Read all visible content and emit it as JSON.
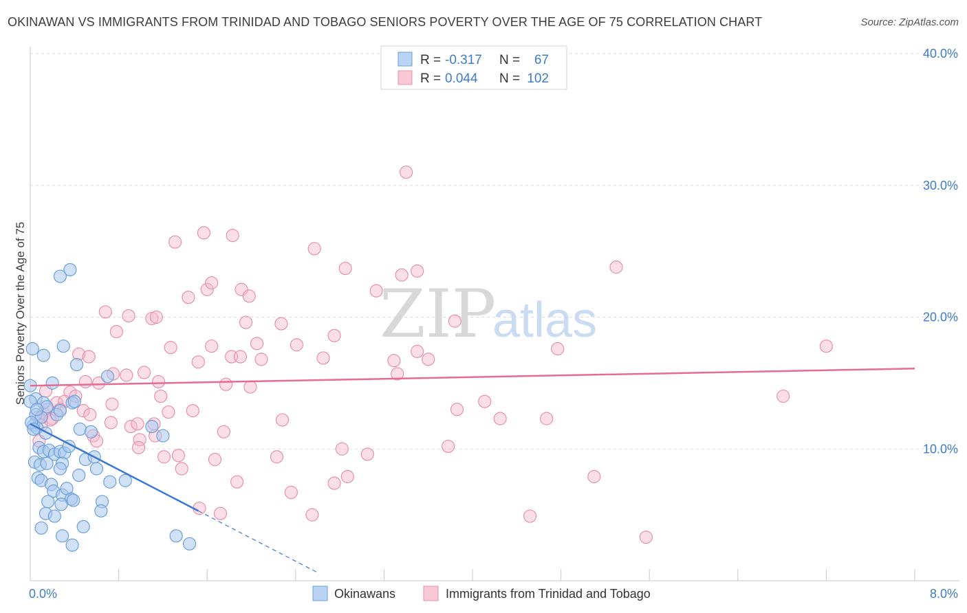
{
  "chart_data": {
    "type": "scatter",
    "title": "OKINAWAN VS IMMIGRANTS FROM TRINIDAD AND TOBAGO SENIORS POVERTY OVER THE AGE OF 75 CORRELATION CHART",
    "source": "Source: ZipAtlas.com",
    "ylabel": "Seniors Poverty Over the Age of 75",
    "xlim": [
      0,
      8
    ],
    "ylim": [
      0,
      40
    ],
    "x_tick_labels": [
      "0.0%",
      "8.0%"
    ],
    "y_ticks": [
      10,
      20,
      30,
      40
    ],
    "y_tick_labels": [
      "10.0%",
      "20.0%",
      "30.0%",
      "40.0%"
    ],
    "watermark": {
      "zip": "ZIP",
      "atlas": "atlas"
    },
    "legend_labels": {
      "r": "R =",
      "n": "N ="
    },
    "series": [
      {
        "name": "Okinawans",
        "color": "#a9c8ef",
        "stroke": "#6a9fdc",
        "line_color": "#3a78d4",
        "R": "-0.317",
        "N": "67",
        "trend": {
          "x0": 0.0,
          "y0": 11.9,
          "x1": 1.52,
          "y1": 5.3,
          "x_dash_end": 2.6
        },
        "points": [
          [
            0.02,
            17.6
          ],
          [
            0.12,
            17.1
          ],
          [
            0.3,
            17.8
          ],
          [
            0.27,
            23.1
          ],
          [
            0.36,
            23.6
          ],
          [
            0.42,
            16.4
          ],
          [
            0.2,
            15.0
          ],
          [
            0.7,
            15.5
          ],
          [
            0.0,
            14.8
          ],
          [
            0.05,
            13.8
          ],
          [
            0.12,
            13.5
          ],
          [
            0.15,
            13.2
          ],
          [
            0.38,
            13.5
          ],
          [
            0.4,
            13.6
          ],
          [
            0.24,
            12.6
          ],
          [
            0.27,
            12.9
          ],
          [
            0.05,
            12.6
          ],
          [
            0.1,
            12.4
          ],
          [
            0.03,
            11.8
          ],
          [
            0.06,
            11.6
          ],
          [
            0.14,
            11.2
          ],
          [
            0.45,
            11.5
          ],
          [
            0.55,
            11.3
          ],
          [
            0.08,
            10.1
          ],
          [
            0.12,
            9.8
          ],
          [
            0.17,
            9.9
          ],
          [
            0.22,
            9.6
          ],
          [
            0.27,
            9.8
          ],
          [
            0.31,
            9.7
          ],
          [
            0.35,
            10.2
          ],
          [
            0.04,
            9.0
          ],
          [
            0.09,
            8.8
          ],
          [
            0.15,
            8.9
          ],
          [
            0.29,
            8.9
          ],
          [
            0.5,
            9.2
          ],
          [
            0.58,
            9.4
          ],
          [
            0.07,
            7.8
          ],
          [
            0.1,
            7.6
          ],
          [
            0.19,
            7.3
          ],
          [
            0.27,
            8.5
          ],
          [
            0.44,
            8.0
          ],
          [
            0.6,
            8.5
          ],
          [
            0.21,
            6.8
          ],
          [
            0.29,
            6.5
          ],
          [
            0.33,
            7.0
          ],
          [
            0.37,
            6.2
          ],
          [
            0.39,
            6.1
          ],
          [
            0.16,
            6.0
          ],
          [
            0.28,
            5.8
          ],
          [
            0.65,
            6.0
          ],
          [
            0.14,
            5.1
          ],
          [
            0.22,
            4.9
          ],
          [
            0.1,
            4.0
          ],
          [
            0.29,
            3.4
          ],
          [
            0.48,
            4.1
          ],
          [
            0.38,
            2.7
          ],
          [
            1.32,
            3.4
          ],
          [
            1.44,
            2.8
          ],
          [
            0.72,
            7.5
          ],
          [
            0.64,
            5.3
          ],
          [
            0.86,
            7.6
          ],
          [
            1.2,
            11.0
          ],
          [
            1.1,
            11.7
          ],
          [
            0.0,
            13.6
          ],
          [
            0.01,
            12.0
          ],
          [
            0.06,
            13.0
          ],
          [
            0.03,
            11.5
          ]
        ]
      },
      {
        "name": "Immigrants from Trinidad and Tobago",
        "color": "#f5b9cb",
        "stroke": "#e890aa",
        "line_color": "#e66b93",
        "R": "0.044",
        "N": "102",
        "trend": {
          "x0": 0.0,
          "y0": 14.8,
          "x1": 8.0,
          "y1": 16.1
        },
        "points": [
          [
            3.4,
            31.0
          ],
          [
            1.57,
            26.4
          ],
          [
            1.83,
            26.2
          ],
          [
            1.31,
            25.7
          ],
          [
            2.57,
            25.2
          ],
          [
            2.85,
            23.7
          ],
          [
            3.36,
            23.2
          ],
          [
            3.5,
            23.5
          ],
          [
            5.3,
            23.8
          ],
          [
            1.6,
            22.1
          ],
          [
            1.64,
            22.6
          ],
          [
            1.43,
            21.5
          ],
          [
            1.91,
            22.1
          ],
          [
            1.98,
            21.6
          ],
          [
            3.13,
            22.0
          ],
          [
            0.68,
            20.4
          ],
          [
            0.89,
            20.1
          ],
          [
            1.1,
            19.9
          ],
          [
            1.14,
            20.0
          ],
          [
            1.95,
            19.6
          ],
          [
            2.27,
            19.5
          ],
          [
            3.84,
            19.7
          ],
          [
            0.78,
            18.9
          ],
          [
            1.27,
            17.7
          ],
          [
            1.64,
            17.8
          ],
          [
            2.05,
            18.0
          ],
          [
            2.41,
            17.9
          ],
          [
            2.75,
            18.6
          ],
          [
            3.5,
            17.4
          ],
          [
            4.77,
            17.6
          ],
          [
            7.2,
            17.8
          ],
          [
            0.44,
            17.2
          ],
          [
            0.53,
            17.0
          ],
          [
            1.52,
            16.6
          ],
          [
            1.82,
            17.0
          ],
          [
            1.9,
            17.0
          ],
          [
            2.09,
            16.8
          ],
          [
            2.65,
            16.9
          ],
          [
            3.29,
            16.7
          ],
          [
            3.6,
            16.8
          ],
          [
            0.75,
            15.7
          ],
          [
            0.87,
            15.6
          ],
          [
            1.03,
            15.8
          ],
          [
            1.16,
            15.1
          ],
          [
            0.5,
            15.1
          ],
          [
            0.62,
            15.0
          ],
          [
            1.77,
            14.9
          ],
          [
            1.99,
            14.7
          ],
          [
            3.32,
            15.7
          ],
          [
            0.14,
            14.4
          ],
          [
            0.36,
            14.3
          ],
          [
            0.41,
            14.0
          ],
          [
            1.18,
            14.0
          ],
          [
            0.24,
            13.5
          ],
          [
            0.31,
            13.6
          ],
          [
            0.74,
            13.4
          ],
          [
            1.47,
            12.9
          ],
          [
            0.48,
            12.9
          ],
          [
            0.12,
            12.7
          ],
          [
            0.16,
            13.0
          ],
          [
            0.2,
            12.3
          ],
          [
            0.27,
            13.0
          ],
          [
            0.54,
            12.6
          ],
          [
            1.25,
            12.8
          ],
          [
            4.11,
            13.6
          ],
          [
            3.86,
            13.0
          ],
          [
            4.25,
            12.3
          ],
          [
            4.67,
            12.3
          ],
          [
            6.81,
            14.0
          ],
          [
            0.07,
            12.4
          ],
          [
            0.1,
            11.8
          ],
          [
            0.08,
            10.6
          ],
          [
            0.18,
            12.2
          ],
          [
            0.57,
            11.0
          ],
          [
            0.6,
            10.6
          ],
          [
            0.73,
            12.0
          ],
          [
            0.91,
            11.7
          ],
          [
            0.97,
            11.9
          ],
          [
            1.12,
            11.9
          ],
          [
            1.75,
            11.3
          ],
          [
            2.28,
            12.2
          ],
          [
            0.99,
            10.7
          ],
          [
            0.98,
            10.1
          ],
          [
            1.13,
            11.0
          ],
          [
            1.21,
            9.4
          ],
          [
            1.34,
            9.5
          ],
          [
            1.37,
            8.5
          ],
          [
            1.67,
            9.2
          ],
          [
            2.23,
            9.4
          ],
          [
            2.82,
            10.0
          ],
          [
            3.05,
            9.6
          ],
          [
            3.78,
            10.2
          ],
          [
            1.87,
            7.5
          ],
          [
            2.87,
            7.9
          ],
          [
            2.75,
            7.4
          ],
          [
            2.36,
            6.7
          ],
          [
            5.1,
            7.9
          ],
          [
            1.53,
            5.5
          ],
          [
            1.72,
            5.1
          ],
          [
            2.55,
            5.0
          ],
          [
            4.52,
            4.9
          ],
          [
            5.57,
            3.3
          ]
        ]
      }
    ]
  }
}
